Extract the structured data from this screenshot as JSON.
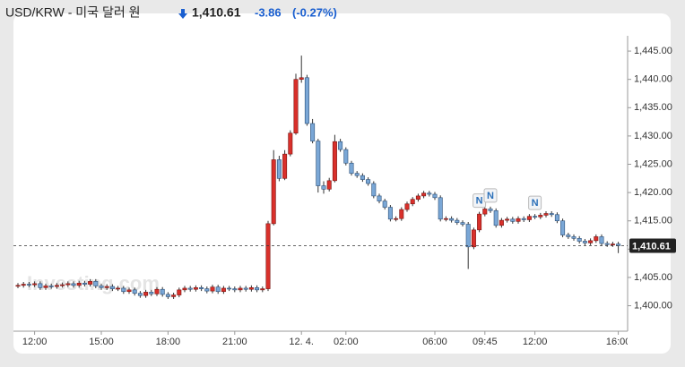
{
  "header": {
    "title": "USD/KRW - 미국 달러 원",
    "price": "1,410.61",
    "change": -3.86,
    "change_percent": "(-0.27%)"
  },
  "chart_data": {
    "type": "candlestick",
    "watermark": "Investing.com",
    "categories": [
      null,
      null,
      null,
      "12:00",
      null,
      null,
      null,
      null,
      null,
      null,
      null,
      null,
      null,
      null,
      null,
      "15:00",
      null,
      null,
      null,
      null,
      null,
      null,
      null,
      null,
      null,
      null,
      null,
      "18:00",
      null,
      null,
      null,
      null,
      null,
      null,
      null,
      null,
      null,
      null,
      null,
      "21:00",
      null,
      null,
      null,
      null,
      null,
      null,
      null,
      null,
      null,
      null,
      null,
      "12. 4.",
      null,
      null,
      null,
      null,
      null,
      null,
      null,
      "02:00",
      null,
      null,
      null,
      null,
      null,
      null,
      null,
      null,
      null,
      null,
      null,
      null,
      null,
      null,
      null,
      "06:00",
      null,
      null,
      null,
      null,
      null,
      null,
      null,
      null,
      "09:45",
      null,
      null,
      null,
      null,
      null,
      null,
      null,
      null,
      "12:00",
      null,
      null,
      null,
      null,
      null,
      null,
      null,
      null,
      null,
      null,
      null,
      null,
      null,
      null,
      "16:00"
    ],
    "open": [
      1403.5,
      1403.6,
      1403.8,
      1403.7,
      1403.9,
      1403.2,
      1403.5,
      1403.4,
      1403.6,
      1403.7,
      1403.9,
      1403.6,
      1404.0,
      1403.8,
      1404.3,
      1403.5,
      1403.2,
      1403.4,
      1403.0,
      1403.1,
      1402.5,
      1402.8,
      1402.2,
      1401.8,
      1402.4,
      1402.1,
      1402.9,
      1402.0,
      1401.6,
      1401.9,
      1402.8,
      1403.1,
      1402.9,
      1403.2,
      1403.0,
      1402.6,
      1403.3,
      1402.5,
      1403.1,
      1403.0,
      1402.8,
      1403.1,
      1402.9,
      1403.2,
      1402.8,
      1403.0,
      1414.5,
      1425.8,
      1422.5,
      1426.8,
      1430.5,
      1440.0,
      1440.3,
      1432.2,
      1429.1,
      1421.2,
      1420.6,
      1422.1,
      1429.0,
      1427.6,
      1425.2,
      1423.4,
      1423.0,
      1422.3,
      1421.6,
      1419.4,
      1418.5,
      1417.4,
      1415.3,
      1415.4,
      1417.0,
      1418.0,
      1418.8,
      1419.4,
      1419.9,
      1419.7,
      1419.1,
      1415.3,
      1415.4,
      1415.1,
      1414.7,
      1414.4,
      1410.4,
      1413.4,
      1416.2,
      1417.1,
      1416.8,
      1414.2,
      1415.1,
      1415.3,
      1414.9,
      1415.4,
      1415.2,
      1415.8,
      1415.7,
      1416.0,
      1416.3,
      1416.1,
      1415.0,
      1412.5,
      1412.2,
      1411.9,
      1411.4,
      1411.1,
      1411.5,
      1412.2,
      1411.0,
      1410.8,
      1410.9
    ],
    "high": [
      1404.0,
      1404.2,
      1404.2,
      1404.3,
      1404.3,
      1403.9,
      1403.9,
      1404.0,
      1404.1,
      1404.3,
      1404.3,
      1404.4,
      1404.4,
      1404.7,
      1404.7,
      1403.9,
      1403.8,
      1403.8,
      1403.5,
      1403.5,
      1403.2,
      1403.2,
      1402.6,
      1402.8,
      1402.8,
      1403.3,
      1403.3,
      1402.4,
      1402.3,
      1403.2,
      1403.5,
      1403.5,
      1403.6,
      1403.6,
      1403.4,
      1403.7,
      1403.7,
      1403.5,
      1403.5,
      1403.4,
      1403.5,
      1403.5,
      1403.6,
      1403.6,
      1403.4,
      1415.0,
      1427.5,
      1426.5,
      1427.5,
      1431.0,
      1441.0,
      1444.2,
      1440.8,
      1433.0,
      1429.5,
      1422.0,
      1422.6,
      1430.2,
      1429.5,
      1428.0,
      1425.6,
      1423.8,
      1423.4,
      1422.7,
      1422.0,
      1419.8,
      1418.9,
      1417.8,
      1415.8,
      1417.4,
      1418.4,
      1419.2,
      1419.8,
      1420.3,
      1420.3,
      1420.1,
      1419.5,
      1415.8,
      1415.8,
      1415.5,
      1415.1,
      1414.8,
      1413.8,
      1416.6,
      1417.5,
      1417.5,
      1417.2,
      1415.5,
      1415.7,
      1415.7,
      1415.8,
      1415.8,
      1416.2,
      1416.2,
      1416.4,
      1416.7,
      1416.7,
      1416.5,
      1415.4,
      1412.9,
      1412.6,
      1412.3,
      1411.8,
      1411.9,
      1412.6,
      1412.6,
      1411.4,
      1411.3,
      1411.3
    ],
    "low": [
      1403.1,
      1403.2,
      1403.3,
      1403.3,
      1402.8,
      1402.8,
      1403.0,
      1403.0,
      1403.2,
      1403.3,
      1403.2,
      1403.2,
      1403.4,
      1403.4,
      1403.1,
      1402.8,
      1402.8,
      1402.6,
      1402.6,
      1402.1,
      1402.1,
      1401.8,
      1401.4,
      1401.4,
      1401.7,
      1401.7,
      1401.6,
      1401.2,
      1401.2,
      1401.5,
      1402.4,
      1402.5,
      1402.5,
      1402.6,
      1402.2,
      1402.2,
      1402.1,
      1402.1,
      1402.6,
      1402.4,
      1402.4,
      1402.5,
      1402.5,
      1402.4,
      1402.4,
      1402.6,
      1414.2,
      1422.0,
      1422.2,
      1426.4,
      1430.2,
      1439.4,
      1431.8,
      1428.7,
      1420.0,
      1419.8,
      1420.2,
      1421.8,
      1427.2,
      1424.8,
      1423.0,
      1422.6,
      1421.9,
      1421.2,
      1419.0,
      1418.1,
      1417.0,
      1414.9,
      1414.9,
      1415.0,
      1416.6,
      1417.6,
      1418.4,
      1419.0,
      1419.3,
      1418.7,
      1414.9,
      1414.9,
      1414.7,
      1414.3,
      1414.0,
      1406.5,
      1410.0,
      1413.0,
      1415.8,
      1416.4,
      1413.8,
      1413.8,
      1414.7,
      1414.5,
      1414.5,
      1414.8,
      1414.8,
      1415.3,
      1415.3,
      1415.6,
      1415.7,
      1414.6,
      1412.1,
      1411.8,
      1411.5,
      1411.0,
      1410.7,
      1410.7,
      1411.1,
      1410.6,
      1410.4,
      1410.4,
      1409.3
    ],
    "close": [
      1403.6,
      1403.8,
      1403.7,
      1403.9,
      1403.2,
      1403.5,
      1403.4,
      1403.6,
      1403.7,
      1403.9,
      1403.6,
      1404.0,
      1403.8,
      1404.3,
      1403.5,
      1403.2,
      1403.4,
      1403.0,
      1403.1,
      1402.5,
      1402.8,
      1402.2,
      1401.8,
      1402.4,
      1402.1,
      1402.9,
      1402.0,
      1401.6,
      1401.9,
      1402.8,
      1403.1,
      1402.9,
      1403.2,
      1403.0,
      1402.6,
      1403.3,
      1402.5,
      1403.1,
      1403.0,
      1402.8,
      1403.1,
      1402.9,
      1403.2,
      1402.8,
      1403.0,
      1414.5,
      1425.8,
      1422.5,
      1426.8,
      1430.5,
      1440.0,
      1440.3,
      1432.2,
      1429.1,
      1421.2,
      1420.6,
      1422.1,
      1429.0,
      1427.6,
      1425.2,
      1423.4,
      1423.0,
      1422.3,
      1421.6,
      1419.4,
      1418.5,
      1417.4,
      1415.3,
      1415.4,
      1417.0,
      1418.0,
      1418.8,
      1419.4,
      1419.9,
      1419.7,
      1419.1,
      1415.3,
      1415.4,
      1415.1,
      1414.7,
      1414.4,
      1410.4,
      1413.4,
      1416.2,
      1417.1,
      1416.8,
      1414.2,
      1415.1,
      1415.3,
      1414.9,
      1415.4,
      1415.2,
      1415.8,
      1415.7,
      1416.0,
      1416.3,
      1416.1,
      1415.0,
      1412.5,
      1412.2,
      1411.9,
      1411.4,
      1411.1,
      1411.5,
      1412.2,
      1411.0,
      1410.8,
      1410.9,
      1410.61
    ],
    "colors": {
      "up": "#d9302b",
      "down": "#7aa7d6"
    },
    "last_price": 1410.61,
    "annotations": [
      {
        "label": "N",
        "category_index": 83
      },
      {
        "label": "N",
        "category_index": 85
      },
      {
        "label": "N",
        "category_index": 93
      }
    ],
    "ylim": [
      1395.5,
      1447.7
    ],
    "yticks": [
      {
        "value": 1400,
        "label": "1,400.00"
      },
      {
        "value": 1405,
        "label": "1,405.00"
      },
      {
        "value": 1410,
        "label": "1,410.00"
      },
      {
        "value": 1415,
        "label": "1,415.00"
      },
      {
        "value": 1420,
        "label": "1,420.00"
      },
      {
        "value": 1425,
        "label": "1,425.00"
      },
      {
        "value": 1430,
        "label": "1,430.00"
      },
      {
        "value": 1435,
        "label": "1,435.00"
      },
      {
        "value": 1440,
        "label": "1,440.00"
      },
      {
        "value": 1445,
        "label": "1,445.00"
      }
    ]
  }
}
